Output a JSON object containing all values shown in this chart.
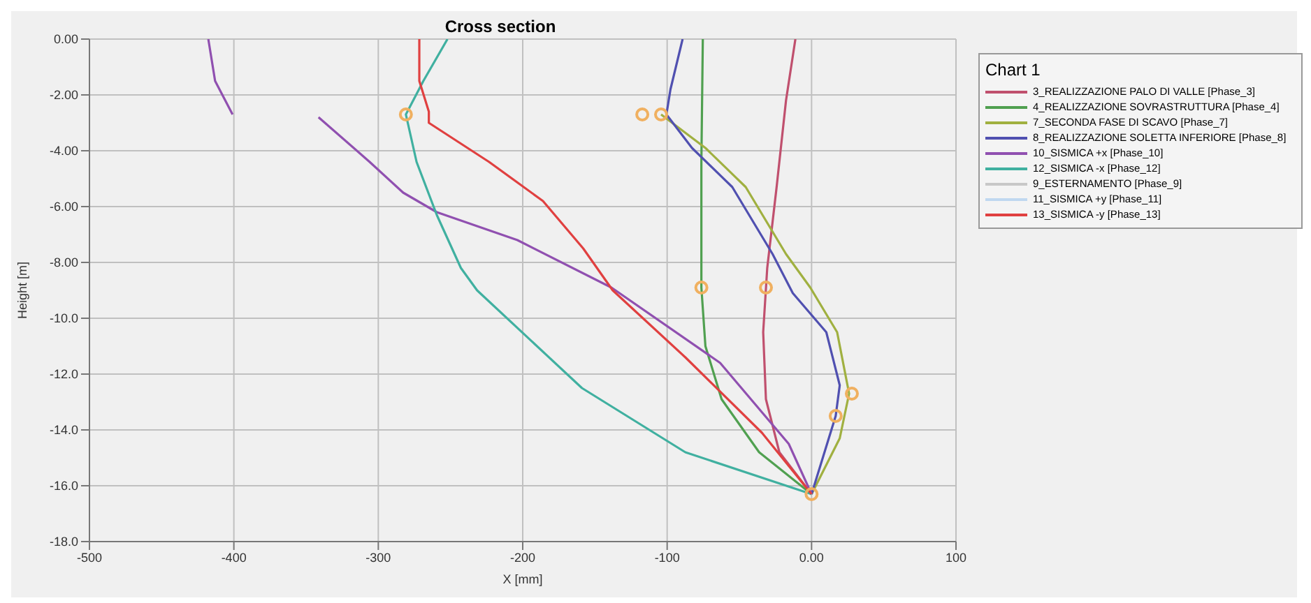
{
  "chart_data": {
    "type": "line",
    "title": "Cross section",
    "xlabel": "X [mm]",
    "ylabel": "Height [m]",
    "legend_title": "Chart 1",
    "legend": "right",
    "grid": true,
    "marker": "none",
    "line_style": "solid",
    "xlim": [
      -500,
      100
    ],
    "xticks": [
      -500,
      -400,
      -300,
      -200,
      -100,
      {
        "value": 0,
        "label": "0.00"
      },
      100
    ],
    "ylim": [
      -18,
      0
    ],
    "yticks": [
      {
        "value": 0,
        "label": "0.00"
      },
      {
        "value": -2,
        "label": "-2.00"
      },
      {
        "value": -4,
        "label": "-4.00"
      },
      {
        "value": -6,
        "label": "-6.00"
      },
      {
        "value": -8,
        "label": "-8.00"
      },
      {
        "value": -10,
        "label": "-10.0"
      },
      {
        "value": -12,
        "label": "-12.0"
      },
      {
        "value": -14,
        "label": "-14.0"
      },
      {
        "value": -16,
        "label": "-16.0"
      },
      {
        "value": -18,
        "label": "-18.0"
      }
    ],
    "series": [
      {
        "name": "3_REALIZZAZIONE PALO DI VALLE [Phase_3]",
        "color": "#c0506e",
        "x": [
          -11.2,
          -17.7,
          -24.2,
          -30.7,
          -33.5,
          -31.6,
          -22.3,
          0
        ],
        "values": [
          0,
          -2.2,
          -5.3,
          -8.2,
          -10.5,
          -12.9,
          -14.8,
          -16.3
        ]
      },
      {
        "name": "4_REALIZZAZIONE SOVRASTRUTTURA [Phase_4]",
        "color": "#50a050",
        "x": [
          -75.3,
          -76.3,
          -76.3,
          -73.5,
          -62.3,
          -36.3,
          0
        ],
        "values": [
          0,
          -4.4,
          -8.9,
          -11,
          -12.9,
          -14.8,
          -16.3
        ]
      },
      {
        "name": "7_SECONDA FASE DI SCAVO [Phase_7]",
        "color": "#a0b040",
        "x": [
          -104.2,
          -73.5,
          -45.6,
          -17.7,
          -0.9,
          17.7,
          26,
          19.5,
          0
        ],
        "values": [
          -2.7,
          -3.9,
          -5.3,
          -7.7,
          -8.9,
          -10.5,
          -12.7,
          -14.3,
          -16.3
        ]
      },
      {
        "name": "8_REALIZZAZIONE SOLETTA INFERIORE [Phase_8]",
        "color": "#5050b0",
        "x": [
          -89.3,
          -97.7,
          -100.5,
          -82.8,
          -54.9,
          -27,
          -13,
          10.2,
          19.5,
          16.7,
          0
        ],
        "values": [
          0,
          -1.8,
          -2.7,
          -3.9,
          -5.3,
          -7.7,
          -9.1,
          -10.5,
          -12.4,
          -13.5,
          -16.3
        ]
      },
      {
        "name": "10_SISMICA +x [Phase_10]",
        "color": "#9050b0",
        "x": [
          -417.7,
          -413,
          -400.9,
          null,
          -341.4,
          -306,
          -282.8,
          -259.5,
          -203.7,
          -138.6,
          -63.3,
          -15.8,
          0
        ],
        "values": [
          0,
          -1.5,
          -2.7,
          null,
          -2.8,
          -4.4,
          -5.5,
          -6.2,
          -7.2,
          -8.9,
          -11.6,
          -14.5,
          -16.3
        ]
      },
      {
        "name": "12_SISMICA -x [Phase_12]",
        "color": "#40b0a0",
        "x": [
          -252.1,
          -268.8,
          -280.9,
          -273.5,
          -259.5,
          -242.8,
          -231.6,
          -159,
          -87.4,
          0
        ],
        "values": [
          0,
          -1.5,
          -2.7,
          -4.4,
          -6.3,
          -8.2,
          -9,
          -12.5,
          -14.8,
          -16.3
        ]
      },
      {
        "name": "9_ESTERNAMENTO [Phase_9]",
        "color": "#c8c8c8"
      },
      {
        "name": "11_SISMICA +y [Phase_11]",
        "color": "#c0d8f0"
      },
      {
        "name": "13_SISMICA -y [Phase_13]",
        "color": "#e04040",
        "x": [
          -271.6,
          -271.6,
          -265,
          -265,
          -223.3,
          -186,
          -158.1,
          -137.7,
          -87.4,
          -34.4,
          0
        ],
        "values": [
          0,
          -1.5,
          -2.6,
          -3,
          -4.4,
          -5.8,
          -7.5,
          -9,
          -11.4,
          -14.1,
          -16.3
        ]
      },
      {
        "type": "scatter",
        "marker": "circle",
        "color": "#f0b060",
        "x": [
          -280.9,
          -117.2,
          -104.2,
          -76.3,
          -31.6,
          27.9,
          16.7,
          0
        ],
        "values": [
          -2.7,
          -2.7,
          -2.7,
          -8.9,
          -8.9,
          -12.7,
          -13.5,
          -16.3
        ]
      }
    ]
  }
}
